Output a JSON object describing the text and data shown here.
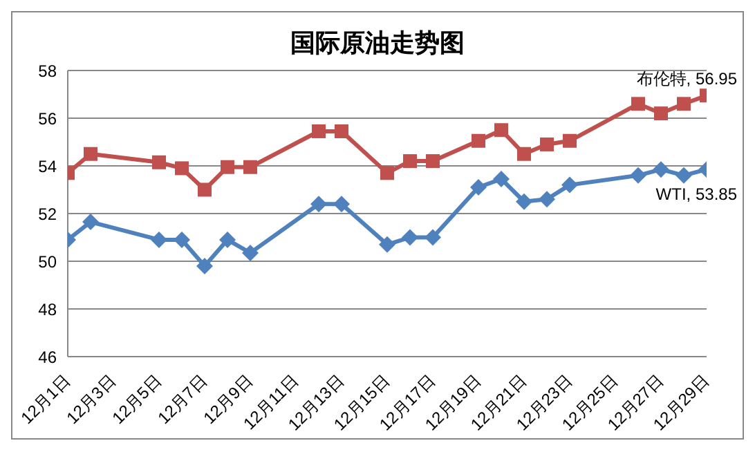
{
  "chart_data": {
    "type": "line",
    "title": "国际原油走势图",
    "x": [
      "--12-01",
      "--12-02",
      "--12-05",
      "--12-06",
      "--12-07",
      "--12-08",
      "--12-09",
      "--12-12",
      "--12-13",
      "--12-15",
      "--12-16",
      "--12-17",
      "--12-19",
      "--12-20",
      "--12-21",
      "--12-22",
      "--12-23",
      "--12-26",
      "--12-27",
      "--12-28",
      "--12-29"
    ],
    "series": [
      {
        "name": "布伦特",
        "color": "#c0504d",
        "marker": "square",
        "values": [
          53.7,
          54.5,
          54.15,
          53.9,
          53.0,
          53.95,
          53.95,
          55.45,
          55.45,
          53.7,
          54.2,
          54.2,
          55.05,
          55.5,
          54.5,
          54.9,
          55.05,
          56.6,
          56.2,
          56.6,
          56.95
        ],
        "value_labels": [
          null,
          null,
          null,
          null,
          null,
          null,
          null,
          null,
          null,
          null,
          null,
          null,
          null,
          null,
          null,
          null,
          null,
          null,
          null,
          null,
          ", 56.95"
        ]
      },
      {
        "name": "WTI",
        "color": "#4f81bd",
        "marker": "diamond",
        "values": [
          50.9,
          51.65,
          50.9,
          50.9,
          49.8,
          50.9,
          50.35,
          52.4,
          52.4,
          50.7,
          51.0,
          51.0,
          53.1,
          53.45,
          52.5,
          52.6,
          53.2,
          53.6,
          53.85,
          53.6,
          53.85
        ],
        "value_labels": [
          null,
          null,
          null,
          null,
          null,
          null,
          null,
          null,
          null,
          null,
          null,
          null,
          null,
          null,
          null,
          null,
          null,
          null,
          null,
          null,
          ", 53.85"
        ]
      }
    ],
    "xlim": [
      "--12-01",
      "--12-29"
    ],
    "xticks": [
      {
        "value": "--12-01",
        "label": "12月1日"
      },
      {
        "value": "--12-03",
        "label": "12月3日"
      },
      {
        "value": "--12-05",
        "label": "12月5日"
      },
      {
        "value": "--12-07",
        "label": "12月7日"
      },
      {
        "value": "--12-09",
        "label": "12月9日"
      },
      {
        "value": "--12-11",
        "label": "12月11日"
      },
      {
        "value": "--12-13",
        "label": "12月13日"
      },
      {
        "value": "--12-15",
        "label": "12月15日"
      },
      {
        "value": "--12-17",
        "label": "12月17日"
      },
      {
        "value": "--12-19",
        "label": "12月19日"
      },
      {
        "value": "--12-21",
        "label": "12月21日"
      },
      {
        "value": "--12-23",
        "label": "12月23日"
      },
      {
        "value": "--12-25",
        "label": "12月25日"
      },
      {
        "value": "--12-27",
        "label": "12月27日"
      },
      {
        "value": "--12-29",
        "label": "12月29日"
      }
    ],
    "ylim": [
      46,
      58
    ],
    "yticks": [
      46,
      48,
      50,
      52,
      54,
      56,
      58
    ],
    "grid": "y",
    "legend": false,
    "line_style": "solid"
  }
}
